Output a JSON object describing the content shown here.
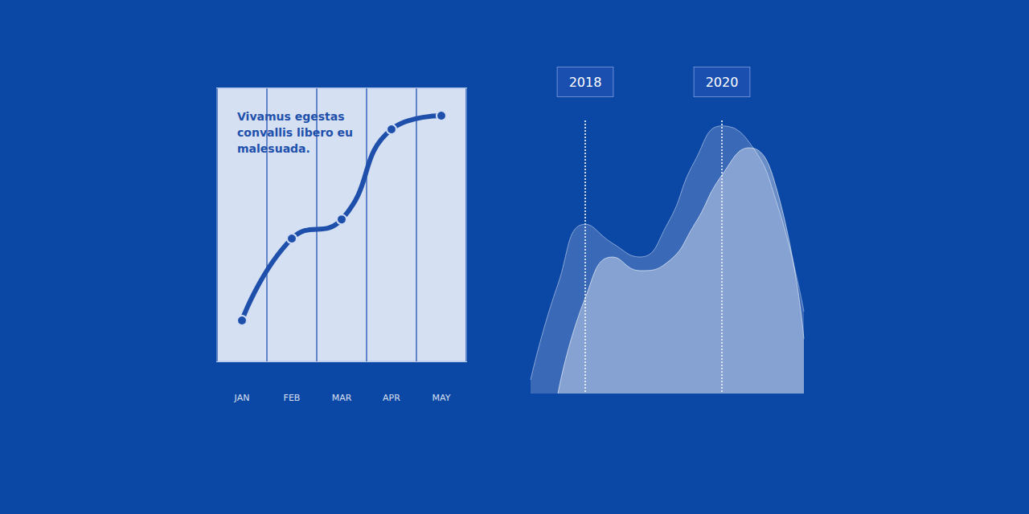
{
  "chart_data": [
    {
      "type": "line",
      "annotation": "Vivamus egestas convallis libero eu malesuada.",
      "categories": [
        "JAN",
        "FEB",
        "MAR",
        "APR",
        "MAY"
      ],
      "values": [
        15,
        45,
        52,
        85,
        90
      ],
      "color": "#1e50ab",
      "marker": "circle",
      "ylim": [
        0,
        100
      ],
      "grid": true,
      "tick_labels": "x"
    },
    {
      "type": "area",
      "categories": [
        null,
        null,
        "2018",
        null,
        null,
        null,
        null,
        "2020",
        null,
        null,
        null
      ],
      "series": [
        {
          "color": "#c9d6f0",
          "values": [
            5,
            40,
            62,
            55,
            50,
            62,
            85,
            98,
            92,
            70,
            30
          ]
        },
        {
          "color": "#ffffff",
          "values": [
            null,
            0,
            35,
            50,
            45,
            48,
            62,
            80,
            90,
            75,
            20
          ]
        }
      ],
      "ylim": [
        0,
        100
      ],
      "grid": true,
      "tick_labels": "x"
    }
  ]
}
